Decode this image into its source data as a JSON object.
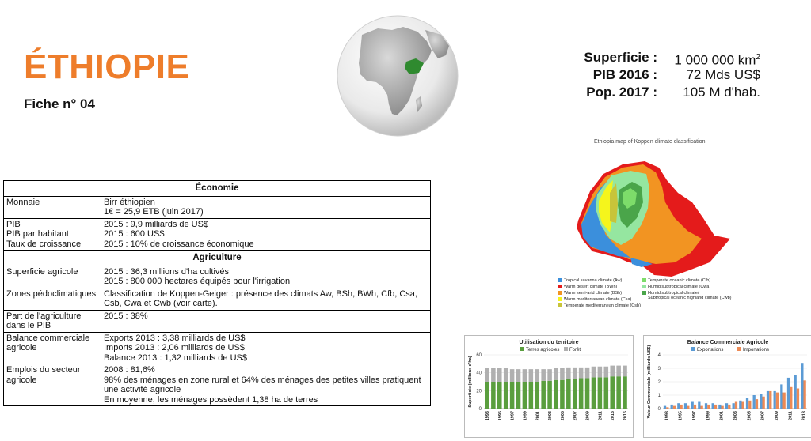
{
  "header": {
    "title": "ÉTHIOPIE",
    "subtitle": "Fiche n° 04"
  },
  "stats": [
    {
      "label": "Superficie :",
      "value": "1 000 000 km",
      "sup": "2"
    },
    {
      "label": "PIB 2016 :",
      "value": "72 Mds US$"
    },
    {
      "label": "Pop. 2017 :",
      "value": "105 M d'hab."
    }
  ],
  "table": {
    "section_economy": "Économie",
    "section_agriculture": "Agriculture",
    "rows_economy": [
      {
        "label": [
          "Monnaie"
        ],
        "value": [
          "Birr éthiopien",
          "1€ = 25,9 ETB (juin 2017)"
        ]
      },
      {
        "label": [
          "PIB",
          "PIB par habitant",
          "Taux de croissance"
        ],
        "value": [
          "2015 : 9,9 milliards de US$",
          "2015 : 600 US$",
          "2015 : 10% de croissance économique"
        ]
      }
    ],
    "rows_agriculture": [
      {
        "label": [
          "Superficie agricole"
        ],
        "value": [
          "2015 : 36,3 millions d'ha cultivés",
          "2015 : 800 000 hectares équipés pour l'irrigation"
        ]
      },
      {
        "label": [
          "Zones pédoclimatiques"
        ],
        "value": [
          "Classification de Koppen-Geiger : présence des climats Aw, BSh, BWh, Cfb, Csa,",
          "Csb, Cwa et Cwb (voir carte)."
        ]
      },
      {
        "label": [
          "Part de l'agriculture",
          "dans le PIB"
        ],
        "value": [
          "2015 : 38%"
        ]
      },
      {
        "label": [
          "Balance commerciale",
          "agricole"
        ],
        "value": [
          "Exports 2013 : 3,38 milliards de US$",
          "Imports 2013 : 2,06 milliards de US$",
          "Balance 2013 : 1,32 milliards de US$"
        ]
      },
      {
        "label": [
          "Emplois du secteur",
          "agricole"
        ],
        "value": [
          "2008 : 81,6%",
          "98% des ménages en zone rural et 64% des ménages des petites villes pratiquent",
          "une activité agricole",
          "En moyenne, les ménages possèdent 1,38 ha de terres"
        ]
      }
    ]
  },
  "koppen_map": {
    "title": "Ethiopia map of Koppen climate classification",
    "legend": [
      {
        "label": "Tropical savanna climate (Aw)",
        "color": "#3b8fdc"
      },
      {
        "label": "Warm desert climate (BWh)",
        "color": "#e41b1b"
      },
      {
        "label": "Warm semi-arid climate (BSh)",
        "color": "#f29422"
      },
      {
        "label": "Warm mediterranean climate (Csa)",
        "color": "#f5f51c"
      },
      {
        "label": "Temperate mediterranean climate (Csb)",
        "color": "#c8c43a"
      },
      {
        "label": "Temperate oceanic climate (Cfb)",
        "color": "#7ddc6a"
      },
      {
        "label": "Humid subtropical climate (Cwa)",
        "color": "#95e6a0"
      },
      {
        "label": "Humid subtropical climate/",
        "label2": "Subtropical oceanic highland climate (Cwb)",
        "color": "#4aa54a"
      }
    ]
  },
  "chart_data": [
    {
      "type": "bar",
      "title": "Utilisation du territoire",
      "ylabel": "Superficie (millions d'ha)",
      "ylim": [
        0,
        60
      ],
      "yticks": [
        0,
        20,
        40,
        60
      ],
      "x": [
        "1993",
        "1994",
        "1995",
        "1996",
        "1997",
        "1998",
        "1999",
        "2000",
        "2001",
        "2002",
        "2003",
        "2004",
        "2005",
        "2006",
        "2007",
        "2008",
        "2009",
        "2010",
        "2011",
        "2012",
        "2013",
        "2014",
        "2015"
      ],
      "xtick_labels": [
        "1993",
        "1995",
        "1997",
        "1999",
        "2001",
        "2003",
        "2005",
        "2007",
        "2009",
        "2011",
        "2013",
        "2015"
      ],
      "stacked": true,
      "series": [
        {
          "name": "Terres agricoles",
          "color": "#5a9e3e",
          "values": [
            30,
            30,
            30,
            30,
            30,
            30,
            30,
            30,
            30,
            31,
            31,
            32,
            32,
            33,
            33,
            34,
            34,
            35,
            35,
            35,
            36,
            36,
            36
          ]
        },
        {
          "name": "Forêt",
          "color": "#b0b0b0",
          "values": [
            15,
            15,
            15,
            15,
            14,
            14,
            14,
            14,
            14,
            13,
            13,
            13,
            13,
            13,
            13,
            12,
            12,
            12,
            12,
            12,
            12,
            12,
            12
          ]
        }
      ],
      "legend_position": "top"
    },
    {
      "type": "bar",
      "title": "Balance Commerciale  Agricole",
      "ylabel": "Valeur Commerciale (milliards US$)",
      "ylim": [
        0,
        4
      ],
      "yticks": [
        0,
        1,
        2,
        3,
        4
      ],
      "x": [
        "1993",
        "1994",
        "1995",
        "1996",
        "1997",
        "1998",
        "1999",
        "2000",
        "2001",
        "2002",
        "2003",
        "2004",
        "2005",
        "2006",
        "2007",
        "2008",
        "2009",
        "2010",
        "2011",
        "2012",
        "2013"
      ],
      "xtick_labels": [
        "1993",
        "1995",
        "1997",
        "1999",
        "2001",
        "2003",
        "2005",
        "2007",
        "2009",
        "2011",
        "2013"
      ],
      "series": [
        {
          "name": "Exportations",
          "color": "#5b9bd5",
          "values": [
            0.2,
            0.3,
            0.4,
            0.4,
            0.5,
            0.5,
            0.4,
            0.4,
            0.3,
            0.4,
            0.4,
            0.6,
            0.8,
            1.0,
            1.1,
            1.3,
            1.3,
            1.8,
            2.3,
            2.5,
            3.4
          ]
        },
        {
          "name": "Importations",
          "color": "#ed8a55",
          "values": [
            0.1,
            0.2,
            0.3,
            0.2,
            0.3,
            0.2,
            0.3,
            0.3,
            0.2,
            0.3,
            0.5,
            0.5,
            0.6,
            0.7,
            0.9,
            1.3,
            1.2,
            1.2,
            1.6,
            1.5,
            2.1
          ]
        }
      ],
      "legend_position": "top"
    }
  ]
}
